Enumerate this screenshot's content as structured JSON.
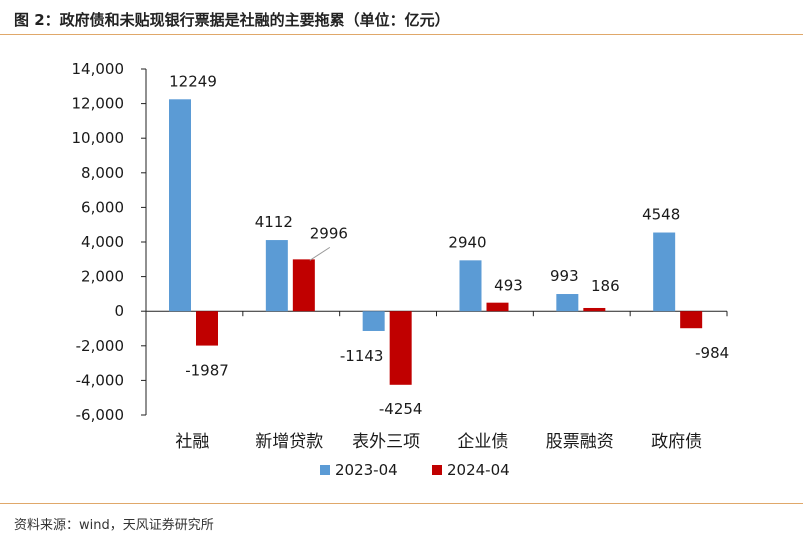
{
  "header": {
    "title": "图 2：政府债和未贴现银行票据是社融的主要拖累（单位：亿元）"
  },
  "footer": {
    "source": "资料来源：wind，天风证券研究所"
  },
  "chart_data": {
    "type": "bar",
    "title": "图 2：政府债和未贴现银行票据是社融的主要拖累（单位：亿元）",
    "categories": [
      "社融",
      "新增贷款",
      "表外三项",
      "企业债",
      "股票融资",
      "政府债"
    ],
    "series": [
      {
        "name": "2023-04",
        "color": "#5b9bd5",
        "values": [
          12249,
          4112,
          -1143,
          2940,
          993,
          4548
        ]
      },
      {
        "name": "2024-04",
        "color": "#c00000",
        "values": [
          -1987,
          2996,
          -4254,
          493,
          186,
          -984
        ]
      }
    ],
    "data_labels": [
      [
        "12249",
        "4112",
        "-1143",
        "2940",
        "993",
        "4548"
      ],
      [
        "-1987",
        "2996",
        "-4254",
        "493",
        "186",
        "-984"
      ]
    ],
    "y_ticks": [
      14000,
      12000,
      10000,
      8000,
      6000,
      4000,
      2000,
      0,
      -2000,
      -4000,
      -6000
    ],
    "y_tick_labels": [
      "14,000",
      "12,000",
      "10,000",
      "8,000",
      "6,000",
      "4,000",
      "2,000",
      "0",
      "-2,000",
      "-4,000",
      "-6,000"
    ],
    "ylim": [
      -6000,
      14000
    ],
    "xlabel": "",
    "ylabel": "",
    "grid": false,
    "legend_position": "bottom-center"
  }
}
